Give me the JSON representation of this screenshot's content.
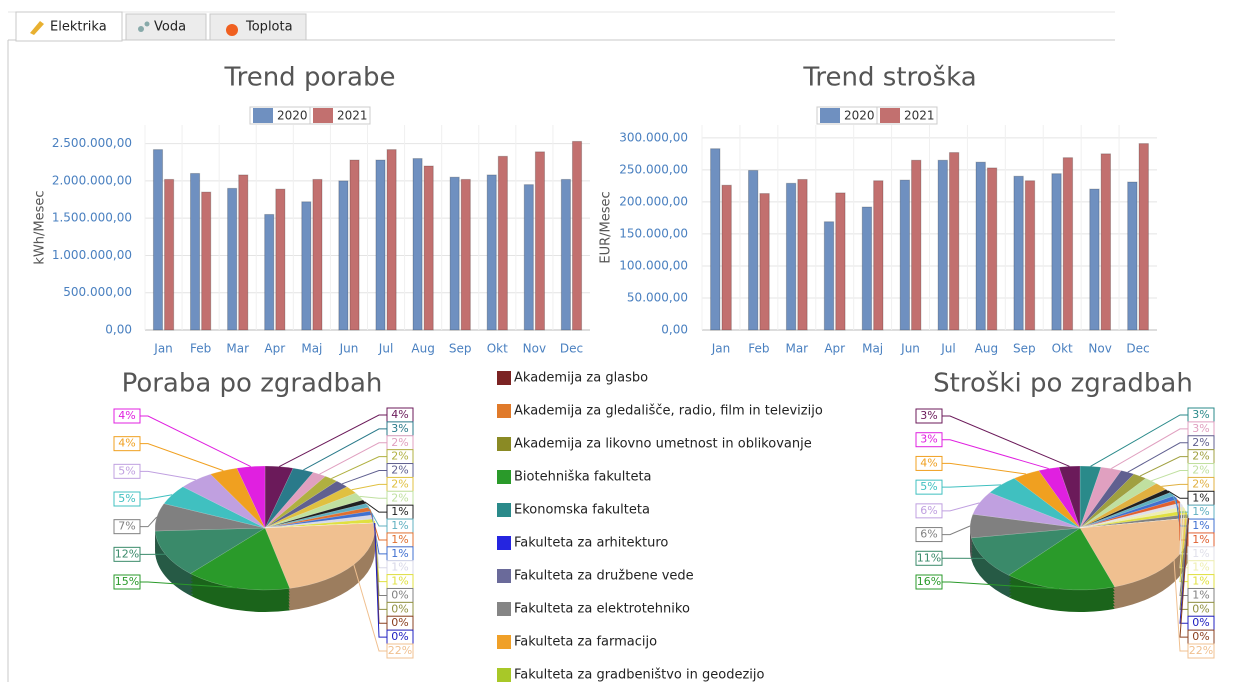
{
  "tabs": [
    "Elektrika",
    "Voda",
    "Toplota"
  ],
  "legend": {
    "items": [
      {
        "name": "Akademija za glasbo",
        "color": "#7b2323"
      },
      {
        "name": "Akademija za gledališče, radio, film in televizijo",
        "color": "#e07a2a"
      },
      {
        "name": "Akademija za likovno umetnost in oblikovanje",
        "color": "#8a8a24"
      },
      {
        "name": "Biotehniška fakulteta",
        "color": "#2a9a2a"
      },
      {
        "name": "Ekonomska fakulteta",
        "color": "#2a8a8a"
      },
      {
        "name": "Fakulteta za arhitekturo",
        "color": "#2525e0"
      },
      {
        "name": "Fakulteta za družbene vede",
        "color": "#6a6a9a"
      },
      {
        "name": "Fakulteta za elektrotehniko",
        "color": "#858585"
      },
      {
        "name": "Fakulteta za farmacijo",
        "color": "#f0a028"
      },
      {
        "name": "Fakulteta za gradbeništvo in geodezijo",
        "color": "#a8c828"
      }
    ]
  },
  "chart_data": [
    {
      "type": "bar",
      "title": "Trend porabe",
      "ylabel": "kWh/Mesec",
      "legend": "top",
      "grid": true,
      "categories": [
        "Jan",
        "Feb",
        "Mar",
        "Apr",
        "Maj",
        "Jun",
        "Jul",
        "Aug",
        "Sep",
        "Okt",
        "Nov",
        "Dec"
      ],
      "series": [
        {
          "name": "2020",
          "color": "#6f90c0",
          "values": [
            2420000,
            2100000,
            1900000,
            1550000,
            1720000,
            2000000,
            2280000,
            2300000,
            2050000,
            2080000,
            1950000,
            2020000
          ]
        },
        {
          "name": "2021",
          "color": "#c2706f",
          "values": [
            2020000,
            1850000,
            2080000,
            1890000,
            2020000,
            2280000,
            2420000,
            2200000,
            2020000,
            2330000,
            2390000,
            2530000
          ]
        }
      ],
      "ylim": [
        0,
        2750000
      ],
      "yticks": [
        {
          "value": 0,
          "label": "0,00"
        },
        {
          "value": 500000,
          "label": "500.000,00"
        },
        {
          "value": 1000000,
          "label": "1.000.000,00"
        },
        {
          "value": 1500000,
          "label": "1.500.000,00"
        },
        {
          "value": 2000000,
          "label": "2.000.000,00"
        },
        {
          "value": 2500000,
          "label": "2.500.000,00"
        }
      ]
    },
    {
      "type": "bar",
      "title": "Trend stroška",
      "ylabel": "EUR/Mesec",
      "legend": "top",
      "grid": true,
      "categories": [
        "Jan",
        "Feb",
        "Mar",
        "Apr",
        "Maj",
        "Jun",
        "Jul",
        "Aug",
        "Sep",
        "Okt",
        "Nov",
        "Dec"
      ],
      "series": [
        {
          "name": "2020",
          "color": "#6f90c0",
          "values": [
            283000,
            249000,
            229000,
            169000,
            192000,
            234000,
            265000,
            262000,
            240000,
            244000,
            220000,
            231000
          ]
        },
        {
          "name": "2021",
          "color": "#c2706f",
          "values": [
            226000,
            213000,
            235000,
            214000,
            233000,
            265000,
            277000,
            253000,
            233000,
            269000,
            275000,
            291000
          ]
        }
      ],
      "ylim": [
        0,
        320000
      ],
      "yticks": [
        {
          "value": 0,
          "label": "0,00"
        },
        {
          "value": 50000,
          "label": "50.000,00"
        },
        {
          "value": 100000,
          "label": "100.000,00"
        },
        {
          "value": 150000,
          "label": "150.000,00"
        },
        {
          "value": 200000,
          "label": "200.000,00"
        },
        {
          "value": 250000,
          "label": "250.000,00"
        },
        {
          "value": 300000,
          "label": "300.000,00"
        }
      ]
    },
    {
      "type": "pie",
      "title": "Poraba po zgradbah",
      "values": [
        4,
        3,
        2,
        2,
        2,
        2,
        2,
        1,
        1,
        1,
        1,
        1,
        1,
        0,
        0,
        0,
        0,
        22,
        15,
        12,
        7,
        5,
        5,
        4,
        4
      ],
      "value_labels": [
        "4%",
        "3%",
        "2%",
        "2%",
        "2%",
        "2%",
        "2%",
        "1%",
        "1%",
        "1%",
        "1%",
        "1%",
        "1%",
        "0%",
        "0%",
        "0%",
        "0%",
        "22%",
        "15%",
        "12%",
        "7%",
        "5%",
        "5%",
        "4%",
        "4%"
      ],
      "colors": [
        "#6b1a5a",
        "#2a7a8a",
        "#e0a0c0",
        "#b0b040",
        "#606090",
        "#e0c040",
        "#c0e0a0",
        "#202020",
        "#60b0c0",
        "#e07030",
        "#4070d0",
        "#d8d8e8",
        "#e0e040",
        "#808080",
        "#909040",
        "#8a4020",
        "#2020c0",
        "#f0c090",
        "#2a9a2a",
        "#3a8a6a",
        "#808080",
        "#40c0c0",
        "#c0a0e0",
        "#f0a020",
        "#e020e0"
      ]
    },
    {
      "type": "pie",
      "title": "Stroški po zgradbah",
      "values": [
        3,
        3,
        2,
        2,
        2,
        2,
        1,
        1,
        1,
        1,
        1,
        1,
        1,
        1,
        0,
        0,
        0,
        22,
        16,
        11,
        6,
        6,
        5,
        4,
        3,
        3
      ],
      "value_labels": [
        "3%",
        "3%",
        "2%",
        "2%",
        "2%",
        "2%",
        "1%",
        "1%",
        "1%",
        "1%",
        "1%",
        "1%",
        "1%",
        "1%",
        "0%",
        "0%",
        "0%",
        "22%",
        "16%",
        "11%",
        "6%",
        "6%",
        "5%",
        "4%",
        "3%",
        "3%"
      ],
      "colors": [
        "#2a8a8a",
        "#e0a0c0",
        "#606090",
        "#a0a040",
        "#c0e0a0",
        "#e0b040",
        "#202020",
        "#60b0c0",
        "#4070d0",
        "#e06030",
        "#e0e0ea",
        "#eeeeb0",
        "#e0e040",
        "#808080",
        "#909040",
        "#2020c0",
        "#8a4020",
        "#f0c090",
        "#2a9a2a",
        "#3a8a6a",
        "#808080",
        "#c0a0e0",
        "#40c0c0",
        "#f0a020",
        "#e020e0",
        "#6b1a5a"
      ]
    }
  ]
}
